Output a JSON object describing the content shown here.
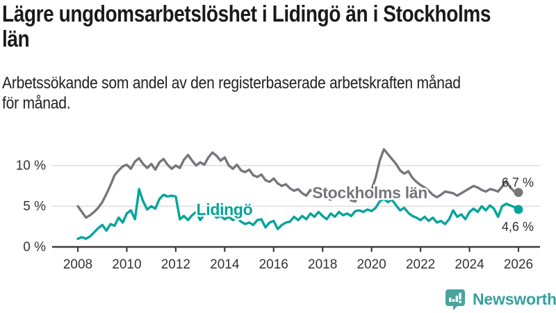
{
  "header": {
    "title": "Lägre ungdomsarbetslöshet i Lidingö än i Stockholms\nlän",
    "subtitle": "Arbetssökande som andel av den registerbaserade arbetskraften månad\nför månad."
  },
  "chart_data": {
    "type": "line",
    "unit": "%",
    "x_start": "2008-01",
    "x_step_months": 2,
    "x_end": "2026-01",
    "x_ticks": [
      2008,
      2010,
      2012,
      2014,
      2016,
      2018,
      2020,
      2022,
      2024,
      2026
    ],
    "y_ticks": [
      {
        "value": 0,
        "label": "0 %"
      },
      {
        "value": 5,
        "label": "5 %"
      },
      {
        "value": 10,
        "label": "10 %"
      }
    ],
    "ylim": [
      0,
      12.6
    ],
    "grid": "horizontal-only",
    "colors": {
      "axis": "#3b3b3b",
      "gridline": "#dbdbdb",
      "tick_text": "#333333",
      "end_label_text": "#2e2e2e"
    },
    "series": [
      {
        "name": "Stockholms län",
        "color": "#75767a",
        "end_value": 6.7,
        "end_label": "6,7 %",
        "label_at": {
          "year": 2019.93,
          "value": 6.67
        },
        "end_label_offset": [
          22,
          -14
        ],
        "values": [
          5.0,
          4.3,
          3.6,
          3.9,
          4.3,
          4.8,
          5.5,
          6.5,
          7.6,
          8.8,
          9.4,
          9.9,
          10.1,
          9.6,
          10.5,
          10.9,
          10.2,
          9.7,
          10.2,
          9.5,
          10.4,
          10.8,
          10.1,
          9.6,
          10.0,
          9.7,
          10.7,
          11.3,
          10.6,
          10.0,
          10.4,
          10.1,
          11.0,
          11.6,
          11.2,
          10.6,
          11.0,
          10.0,
          9.6,
          10.1,
          9.4,
          9.2,
          9.5,
          8.8,
          8.6,
          8.9,
          8.2,
          8.0,
          8.4,
          7.8,
          7.5,
          7.7,
          7.2,
          6.9,
          7.1,
          6.6,
          6.3,
          7.0,
          6.7,
          6.5,
          6.8,
          6.0,
          5.8,
          6.6,
          6.4,
          6.2,
          6.3,
          5.7,
          5.6,
          6.7,
          6.5,
          6.4,
          7.0,
          8.5,
          10.6,
          12.0,
          11.4,
          10.8,
          10.2,
          9.4,
          9.0,
          9.3,
          8.5,
          8.0,
          7.6,
          7.3,
          6.9,
          6.4,
          6.1,
          6.4,
          6.8,
          6.7,
          6.6,
          6.3,
          6.6,
          6.9,
          7.2,
          7.5,
          7.3,
          7.0,
          6.8,
          7.1,
          7.0,
          6.8,
          7.4,
          8.1,
          7.3,
          6.8,
          6.7
        ]
      },
      {
        "name": "Lidingö",
        "color": "#00a49a",
        "end_value": 4.6,
        "end_label": "4,6 %",
        "label_at": {
          "year": 2013.99,
          "value": 4.62
        },
        "end_label_offset": [
          22,
          25
        ],
        "values": [
          1.0,
          1.2,
          1.0,
          1.3,
          1.8,
          2.3,
          2.7,
          2.0,
          2.8,
          2.6,
          3.6,
          3.0,
          4.1,
          4.5,
          3.4,
          7.1,
          5.6,
          4.6,
          5.0,
          4.7,
          5.9,
          6.4,
          6.2,
          6.3,
          6.2,
          3.4,
          3.8,
          3.3,
          3.9,
          4.3,
          3.3,
          4.0,
          4.7,
          4.2,
          3.6,
          3.8,
          3.4,
          3.7,
          3.3,
          3.6,
          3.1,
          2.8,
          3.0,
          2.7,
          3.3,
          3.4,
          2.4,
          3.0,
          3.2,
          2.2,
          2.7,
          3.0,
          3.1,
          3.7,
          3.3,
          3.8,
          3.4,
          4.1,
          3.7,
          4.3,
          3.8,
          3.4,
          4.1,
          3.7,
          4.3,
          3.9,
          4.1,
          3.8,
          4.4,
          4.5,
          4.3,
          4.6,
          4.4,
          4.8,
          5.6,
          5.9,
          5.5,
          5.8,
          5.1,
          4.5,
          4.8,
          4.2,
          3.8,
          3.6,
          3.3,
          3.7,
          3.2,
          3.6,
          3.0,
          3.2,
          2.8,
          3.4,
          4.5,
          3.7,
          4.0,
          3.4,
          4.3,
          4.7,
          4.3,
          5.0,
          4.5,
          5.1,
          4.7,
          3.7,
          5.0,
          5.3,
          5.1,
          4.9,
          4.6
        ]
      }
    ]
  },
  "footer": {
    "brand": "Newsworthy"
  }
}
